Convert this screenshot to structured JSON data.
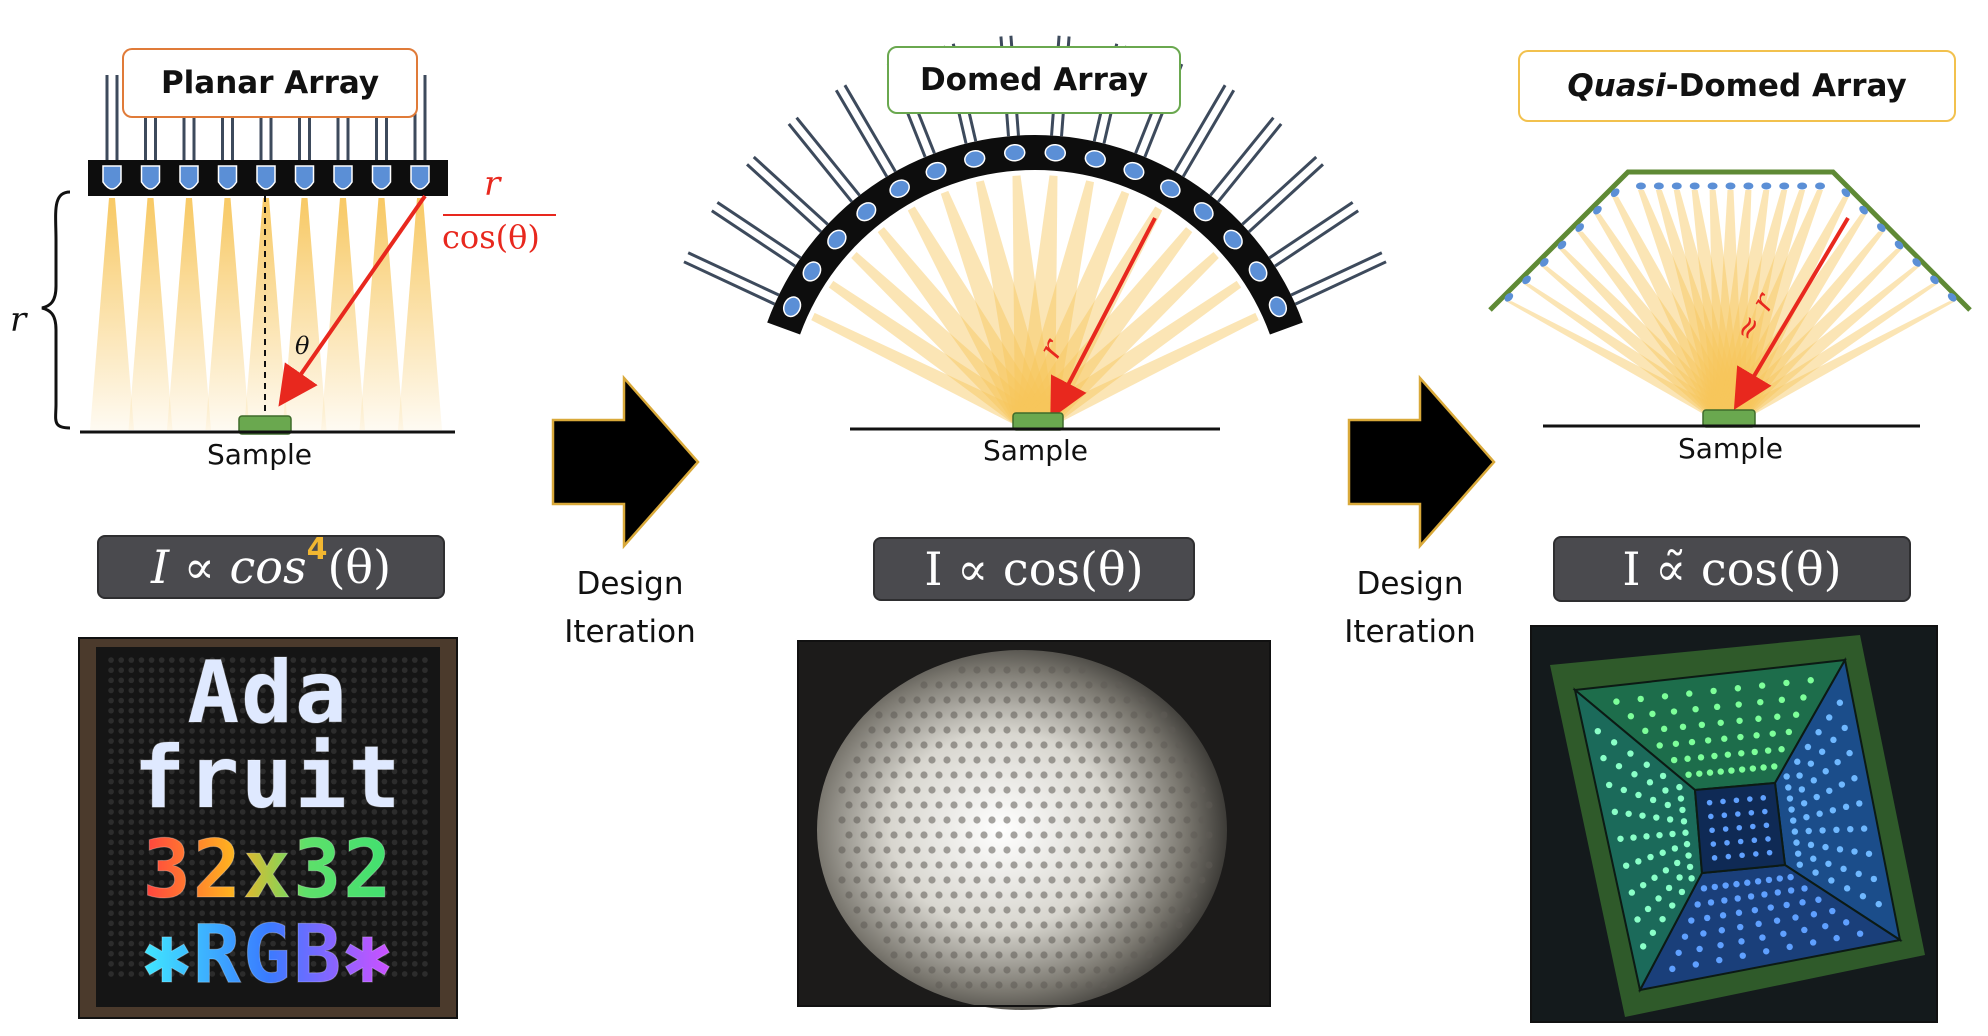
{
  "panels": {
    "planar": {
      "title": "Planar Array",
      "sample_label": "Sample",
      "r_label": "r",
      "theta_label": "θ",
      "distance_num": "r",
      "distance_den": "cos(θ)",
      "formula": {
        "prefix": "I ∝ cos",
        "power": "4",
        "suffix": "(θ)"
      },
      "photo_text": [
        "Ada",
        "fruit",
        "32x32",
        "✱RGB✱"
      ]
    },
    "domed": {
      "title": "Domed Array",
      "sample_label": "Sample",
      "r_label": "r",
      "formula": "I ∝ cos(θ)"
    },
    "quasi": {
      "title_italic": "Quasi",
      "title_rest": "-Domed Array",
      "sample_label": "Sample",
      "r_label": "≈ r",
      "formula": "I ∝̃ cos(θ)"
    }
  },
  "arrows": [
    {
      "line1": "Design",
      "line2": "Iteration"
    },
    {
      "line1": "Design",
      "line2": "Iteration"
    }
  ],
  "colors": {
    "planar_border": "#e07b39",
    "domed_border": "#6aa84f",
    "quasi_border": "#f2c14e",
    "led_blue": "#5b8fd6",
    "light_yellow": "#f7c65c",
    "sample_green": "#6aa84f",
    "red_arrow": "#e8281e",
    "formula_bg": "#4a4a4e"
  }
}
